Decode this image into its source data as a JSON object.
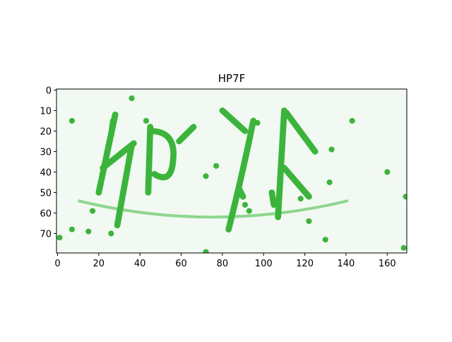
{
  "chart_data": {
    "type": "image",
    "title": "HP7F",
    "xlim": [
      -0.5,
      169.5
    ],
    "ylim": [
      79.5,
      -0.5
    ],
    "xticks": [
      0,
      20,
      40,
      60,
      80,
      100,
      120,
      140,
      160
    ],
    "yticks": [
      0,
      10,
      20,
      30,
      40,
      50,
      60,
      70
    ]
  }
}
